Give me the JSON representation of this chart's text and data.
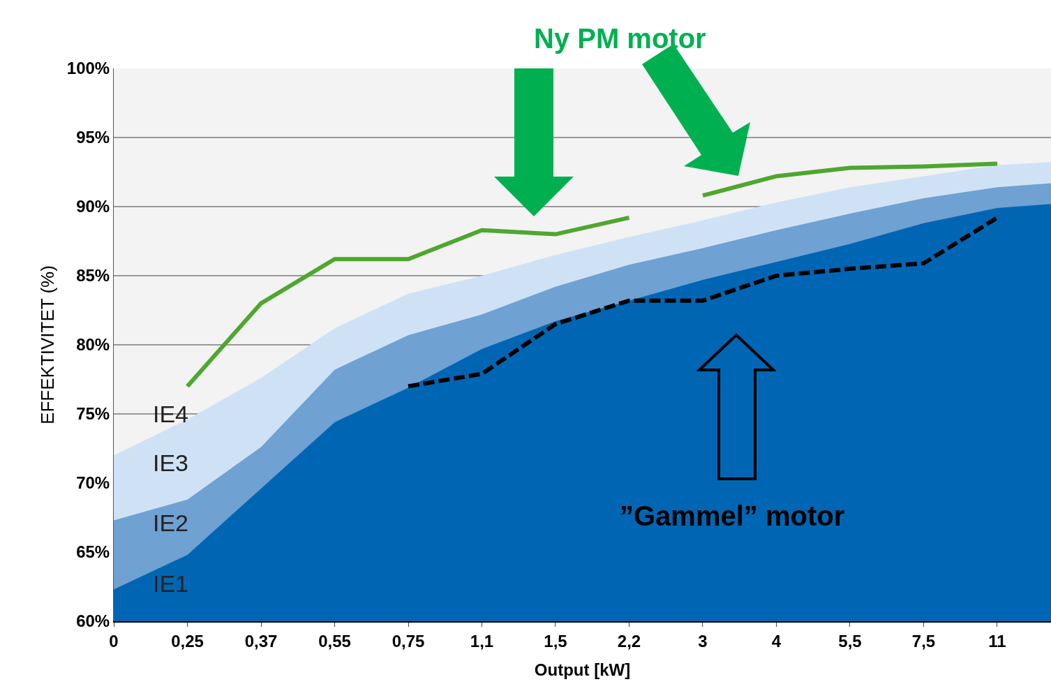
{
  "chart_data": {
    "type": "area",
    "xlabel": "Output [kW]",
    "ylabel": "EFFEKTIVITET (%)",
    "categories": [
      "0",
      "0,25",
      "0,37",
      "0,55",
      "0,75",
      "1,1",
      "1,5",
      "2,2",
      "3",
      "4",
      "5,5",
      "7,5",
      "11",
      null
    ],
    "ylim": [
      60,
      100
    ],
    "yticks": [
      {
        "value": 60,
        "label": "60%"
      },
      {
        "value": 65,
        "label": "65%"
      },
      {
        "value": 70,
        "label": "70%"
      },
      {
        "value": 75,
        "label": "75%"
      },
      {
        "value": 80,
        "label": "80%"
      },
      {
        "value": 85,
        "label": "85%"
      },
      {
        "value": 90,
        "label": "90%"
      },
      {
        "value": 95,
        "label": "95%"
      },
      {
        "value": 100,
        "label": "100%"
      }
    ],
    "grid": "y",
    "legend": false,
    "series": [
      {
        "color": "#cfe2f5",
        "values": [
          72.0,
          74.6,
          77.6,
          81.2,
          83.7,
          85.0,
          86.5,
          87.8,
          89.0,
          90.3,
          91.4,
          92.2,
          93.0,
          93.3
        ]
      },
      {
        "color": "#6fa1d2",
        "values": [
          67.3,
          68.8,
          72.6,
          78.2,
          80.7,
          82.2,
          84.2,
          85.8,
          87.0,
          88.3,
          89.5,
          90.6,
          91.4,
          91.8
        ]
      },
      {
        "color": "#0066b3",
        "values": [
          62.3,
          64.8,
          69.6,
          74.4,
          76.9,
          79.7,
          81.7,
          83.2,
          84.7,
          86.0,
          87.3,
          88.8,
          89.9,
          90.3
        ]
      },
      {
        "type": "line",
        "color": "#4ea72e",
        "line_style": "solid",
        "values": [
          null,
          77.0,
          83.0,
          86.2,
          86.2,
          88.3,
          88.0,
          89.2,
          null,
          null,
          null,
          null,
          null,
          null
        ]
      },
      {
        "type": "line",
        "color": "#4ea72e",
        "line_style": "solid",
        "values": [
          null,
          null,
          null,
          null,
          null,
          null,
          null,
          null,
          90.8,
          92.2,
          92.8,
          92.9,
          93.1,
          null
        ]
      },
      {
        "type": "line",
        "color": "#000000",
        "line_style": "dashed",
        "values": [
          null,
          null,
          null,
          null,
          77.0,
          77.9,
          81.5,
          83.2,
          83.2,
          85.0,
          85.5,
          85.9,
          89.2,
          null
        ]
      }
    ],
    "annotations": [
      "Ny PM motor",
      "”Gammel” motor",
      "IE4",
      "IE3",
      "IE2",
      "IE1"
    ]
  }
}
